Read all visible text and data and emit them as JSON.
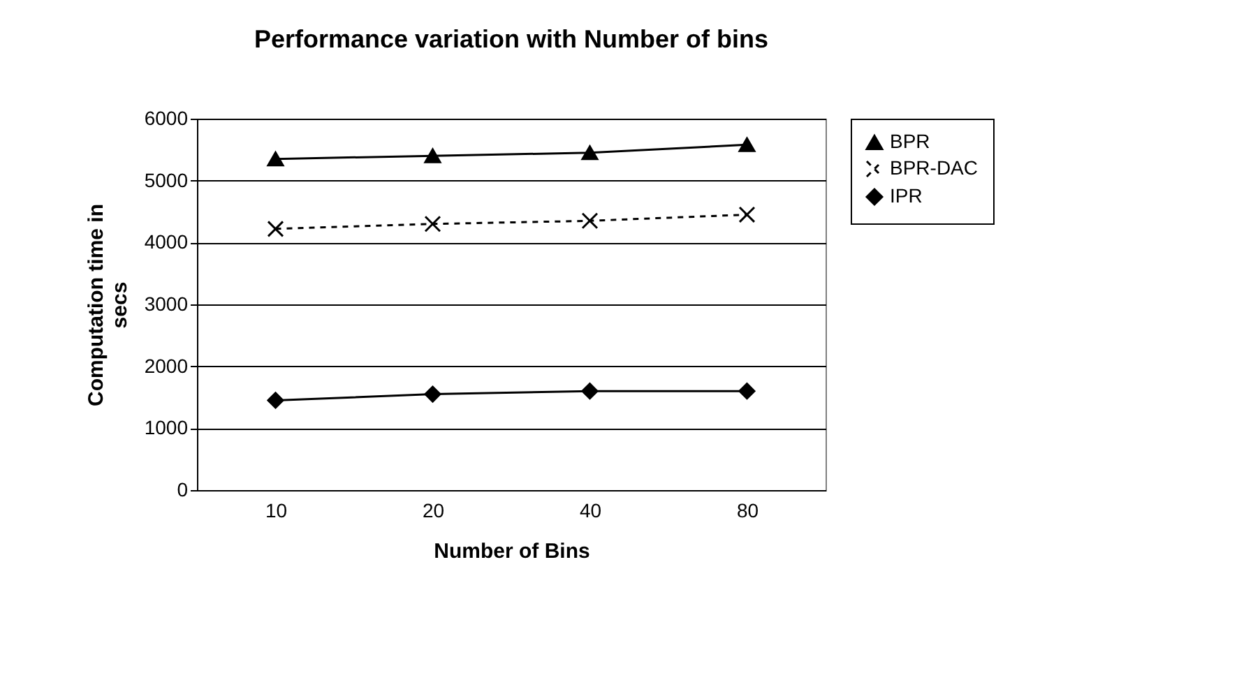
{
  "chart_data": {
    "type": "line",
    "title": "Performance variation with Number of bins",
    "xlabel": "Number of Bins",
    "ylabel": "Computation time in secs",
    "categories": [
      "10",
      "20",
      "40",
      "80"
    ],
    "series": [
      {
        "name": "BPR",
        "color": "#000000",
        "marker": "triangle",
        "line_style": "solid",
        "values": [
          5350,
          5400,
          5450,
          5580
        ]
      },
      {
        "name": "BPR-DAC",
        "color": "#000000",
        "marker": "cross",
        "line_style": "dashed",
        "values": [
          4220,
          4300,
          4350,
          4450
        ]
      },
      {
        "name": "IPR",
        "color": "#000000",
        "marker": "diamond",
        "line_style": "solid",
        "values": [
          1450,
          1550,
          1600,
          1600
        ]
      }
    ],
    "ylim": [
      0,
      6000
    ],
    "yticks": [
      0,
      1000,
      2000,
      3000,
      4000,
      5000,
      6000
    ],
    "grid": "y",
    "legend": "right"
  }
}
